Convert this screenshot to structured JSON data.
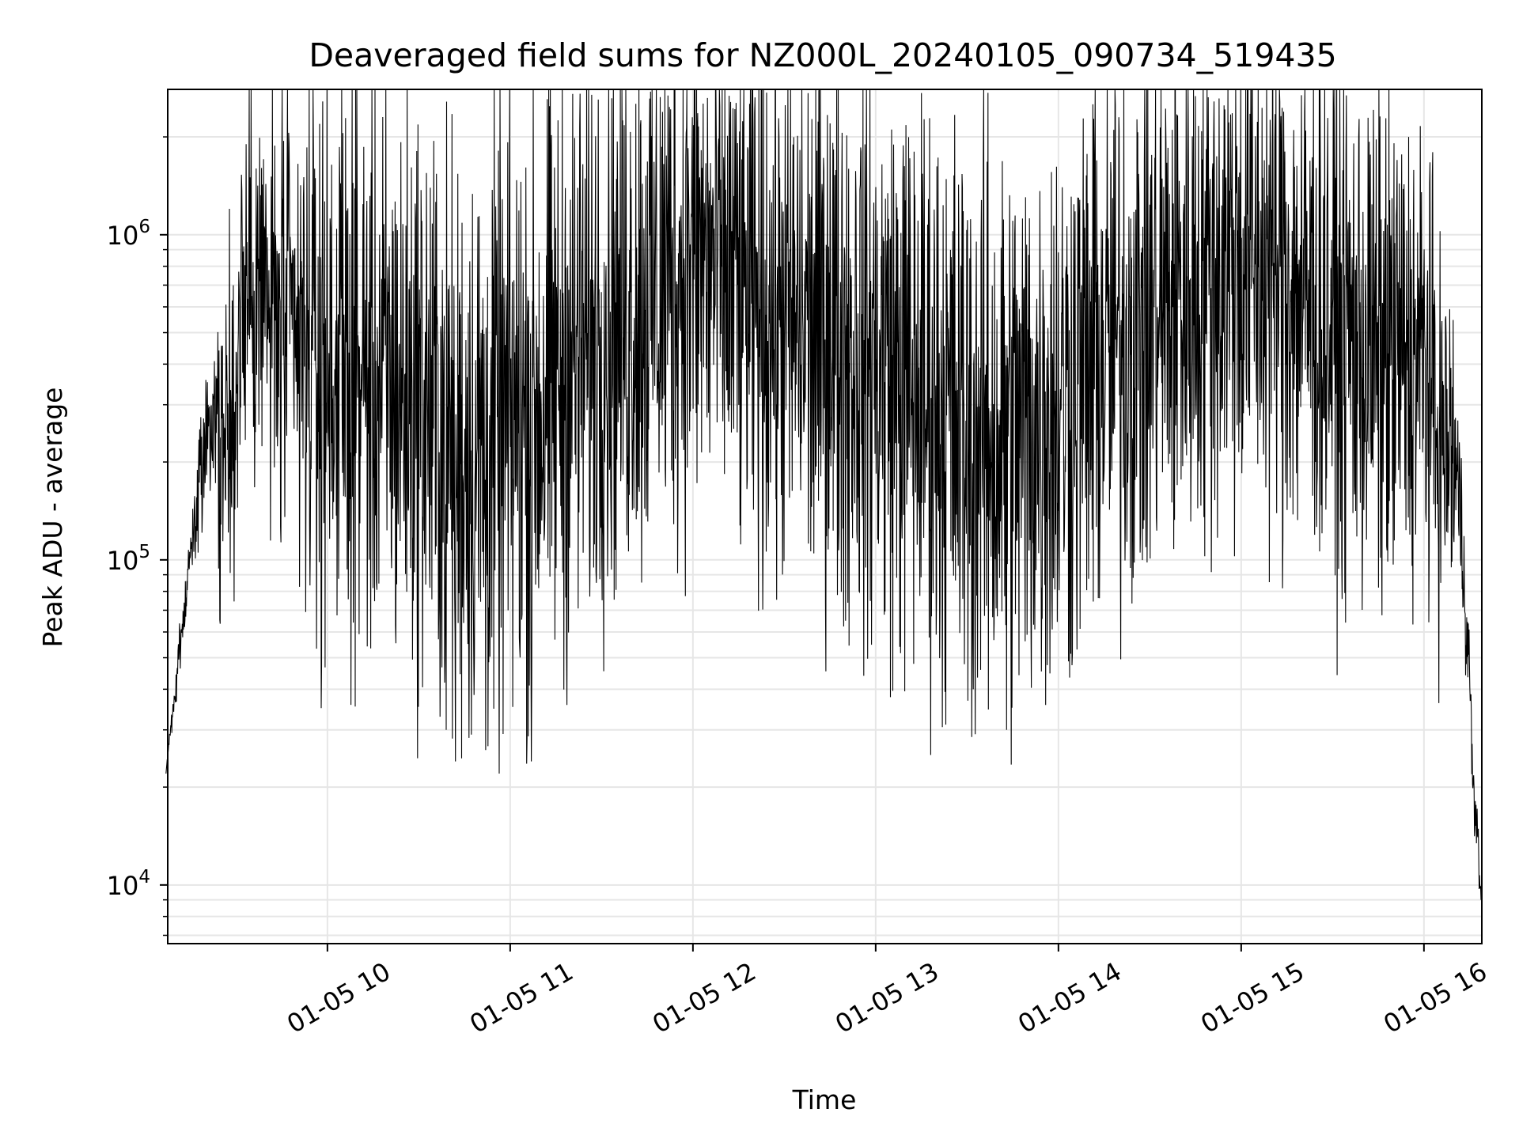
{
  "chart_data": {
    "type": "line",
    "title": "Deaveraged field sums for NZ000L_20240105_090734_519435",
    "xlabel": "Time",
    "ylabel": "Peak ADU - average",
    "yscale": "log",
    "ylim": [
      6600,
      2800000
    ],
    "xlim": [
      "2024-01-05 09:07:34",
      "2024-01-05 16:19:00"
    ],
    "grid": true,
    "line_color": "#000000",
    "grid_color": "#e6e6e6",
    "x_ticks": [
      {
        "value": "2024-01-05 10:00",
        "label": "01-05 10"
      },
      {
        "value": "2024-01-05 11:00",
        "label": "01-05 11"
      },
      {
        "value": "2024-01-05 12:00",
        "label": "01-05 12"
      },
      {
        "value": "2024-01-05 13:00",
        "label": "01-05 13"
      },
      {
        "value": "2024-01-05 14:00",
        "label": "01-05 14"
      },
      {
        "value": "2024-01-05 15:00",
        "label": "01-05 15"
      },
      {
        "value": "2024-01-05 16:00",
        "label": "01-05 16"
      }
    ],
    "y_ticks": [
      {
        "value": 10000,
        "base": "10",
        "exp": "4"
      },
      {
        "value": 100000,
        "base": "10",
        "exp": "5"
      },
      {
        "value": 1000000,
        "base": "10",
        "exp": "6"
      }
    ],
    "series": [
      {
        "x": [
          "2024-01-05 09:07",
          "2024-01-05 09:10",
          "2024-01-05 09:13",
          "2024-01-05 09:16",
          "2024-01-05 09:19",
          "2024-01-05 09:22",
          "2024-01-05 09:25",
          "2024-01-05 09:28",
          "2024-01-05 09:30",
          "2024-01-05 09:32",
          "2024-01-05 09:35",
          "2024-01-05 09:40",
          "2024-01-05 09:45",
          "2024-01-05 09:50",
          "2024-01-05 09:55",
          "2024-01-05 10:00",
          "2024-01-05 10:10",
          "2024-01-05 10:20",
          "2024-01-05 10:30",
          "2024-01-05 10:40",
          "2024-01-05 10:50",
          "2024-01-05 11:00",
          "2024-01-05 11:10",
          "2024-01-05 11:20",
          "2024-01-05 11:30",
          "2024-01-05 11:40",
          "2024-01-05 11:50",
          "2024-01-05 12:00",
          "2024-01-05 12:10",
          "2024-01-05 12:20",
          "2024-01-05 12:30",
          "2024-01-05 12:40",
          "2024-01-05 12:50",
          "2024-01-05 13:00",
          "2024-01-05 13:10",
          "2024-01-05 13:20",
          "2024-01-05 13:30",
          "2024-01-05 13:40",
          "2024-01-05 13:50",
          "2024-01-05 14:00",
          "2024-01-05 14:10",
          "2024-01-05 14:20",
          "2024-01-05 14:30",
          "2024-01-05 14:40",
          "2024-01-05 14:50",
          "2024-01-05 15:00",
          "2024-01-05 15:10",
          "2024-01-05 15:20",
          "2024-01-05 15:30",
          "2024-01-05 15:40",
          "2024-01-05 15:50",
          "2024-01-05 16:00",
          "2024-01-05 16:05",
          "2024-01-05 16:10",
          "2024-01-05 16:13",
          "2024-01-05 16:16",
          "2024-01-05 16:19"
        ],
        "y": [
          22000,
          38000,
          70000,
          120000,
          200000,
          240000,
          230000,
          250000,
          350000,
          500000,
          800000,
          600000,
          500000,
          450000,
          420000,
          400000,
          380000,
          340000,
          320000,
          230000,
          210000,
          250000,
          300000,
          400000,
          500000,
          600000,
          700000,
          850000,
          750000,
          600000,
          550000,
          500000,
          460000,
          420000,
          350000,
          300000,
          250000,
          230000,
          250000,
          300000,
          380000,
          470000,
          560000,
          650000,
          750000,
          850000,
          780000,
          650000,
          550000,
          450000,
          420000,
          410000,
          230000,
          210000,
          90000,
          20000,
          8000
        ],
        "spread": [
          1.0,
          1.1,
          1.15,
          1.2,
          1.4,
          1.7,
          2.2,
          2.5,
          2.4,
          2.6,
          2.8,
          3.0,
          3.2,
          3.4,
          3.6,
          3.8,
          4.0,
          4.2,
          4.3,
          4.5,
          4.6,
          4.6,
          4.5,
          4.4,
          4.2,
          4.1,
          4.0,
          3.9,
          3.9,
          4.0,
          4.0,
          4.1,
          4.2,
          4.3,
          4.4,
          4.4,
          4.5,
          4.5,
          4.4,
          4.3,
          4.2,
          4.1,
          4.0,
          3.9,
          3.8,
          3.8,
          3.9,
          3.9,
          3.9,
          3.8,
          3.6,
          3.2,
          2.6,
          2.2,
          1.4,
          1.2,
          1.1
        ],
        "spikes_up": [
          {
            "x": "2024-01-05 09:31",
            "y": 700000
          },
          {
            "x": "2024-01-05 09:45",
            "y": 1400000
          },
          {
            "x": "2024-01-05 10:04",
            "y": 1450000
          },
          {
            "x": "2024-01-05 12:45",
            "y": 2200000
          },
          {
            "x": "2024-01-05 14:12",
            "y": 1700000
          },
          {
            "x": "2024-01-05 14:55",
            "y": 1500000
          }
        ],
        "spikes_down": [
          {
            "x": "2024-01-05 09:58",
            "y": 35000
          },
          {
            "x": "2024-01-05 10:39",
            "y": 30000
          },
          {
            "x": "2024-01-05 10:42",
            "y": 24000
          },
          {
            "x": "2024-01-05 10:52",
            "y": 26000
          },
          {
            "x": "2024-01-05 11:07",
            "y": 24000
          },
          {
            "x": "2024-01-05 13:32",
            "y": 40000
          },
          {
            "x": "2024-01-05 13:43",
            "y": 30000
          }
        ]
      }
    ]
  }
}
